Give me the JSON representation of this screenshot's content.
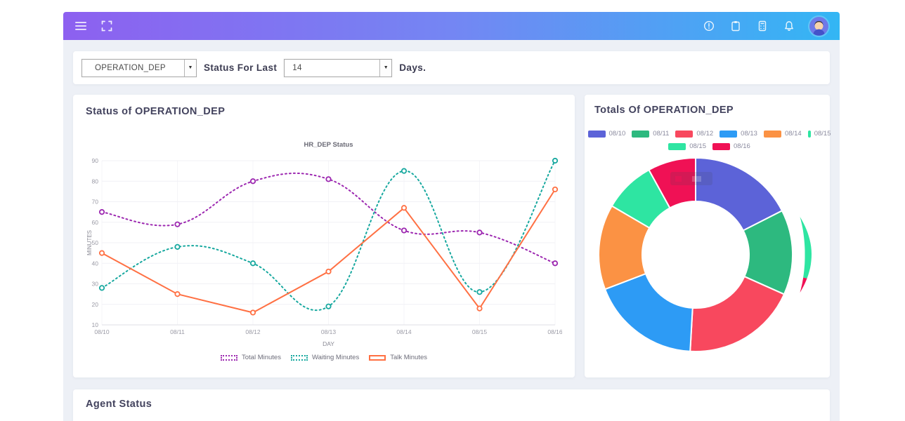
{
  "navbar": {
    "left_icons": [
      "menu-icon",
      "fullscreen-icon"
    ],
    "right_icons": [
      "help-icon",
      "clipboard-icon",
      "calculator-icon",
      "bell-icon"
    ],
    "avatar": "user-avatar"
  },
  "filter": {
    "department": {
      "value": "OPERATION_DEP"
    },
    "status_for_last_label": "Status For Last",
    "days": {
      "value": "14"
    },
    "days_label": "Days."
  },
  "cards": {
    "line": {
      "title": "Status of OPERATION_DEP"
    },
    "donut": {
      "title": "Totals Of OPERATION_DEP"
    },
    "agent": {
      "title": "Agent Status"
    }
  },
  "colors": {
    "navbar_gradient_start": "#8d60f0",
    "navbar_gradient_end": "#33b6f4",
    "content_bg": "#edf0f6",
    "card_bg": "#ffffff"
  },
  "chart_data": [
    {
      "type": "line",
      "title": "HR_DEP Status",
      "xlabel": "DAY",
      "ylabel": "MINUTES",
      "x": [
        "08/10",
        "08/11",
        "08/12",
        "08/13",
        "08/14",
        "08/15",
        "08/16"
      ],
      "ylim": [
        10,
        90
      ],
      "yticks": [
        10,
        20,
        30,
        40,
        50,
        60,
        70,
        80,
        90
      ],
      "grid": true,
      "legend_position": "bottom",
      "series": [
        {
          "name": "Total Minutes",
          "color": "#9c27b0",
          "style": "dotted",
          "smooth": true,
          "values": [
            65,
            59,
            80,
            81,
            56,
            55,
            40
          ]
        },
        {
          "name": "Waiting Minutes",
          "color": "#17a89f",
          "style": "dotted",
          "smooth": true,
          "values": [
            28,
            48,
            40,
            19,
            85,
            26,
            90
          ]
        },
        {
          "name": "Talk Minutes",
          "color": "#ff7043",
          "style": "solid",
          "smooth": false,
          "values": [
            45,
            25,
            16,
            36,
            67,
            18,
            76
          ]
        }
      ]
    },
    {
      "type": "pie",
      "variant": "doughnut",
      "labels": [
        "08/10",
        "08/11",
        "08/12",
        "08/13",
        "08/14",
        "08/15",
        "08/16"
      ],
      "values": [
        17.5,
        14.2,
        19.2,
        18.3,
        14.2,
        8.6,
        8.0
      ],
      "colors": [
        "#5c63d8",
        "#2db97f",
        "#f8485e",
        "#2d9bf5",
        "#fb9244",
        "#2ee5a2",
        "#f01155"
      ],
      "legend_rows": [
        [
          {
            "label": "08/10",
            "color": "#5c63d8"
          },
          {
            "label": "08/11",
            "color": "#2db97f"
          },
          {
            "label": "08/12",
            "color": "#f8485e"
          },
          {
            "label": "08/13",
            "color": "#2d9bf5"
          },
          {
            "label": "08/14",
            "color": "#fb9244"
          },
          {
            "label": "08/15",
            "color": "#2ee5a2",
            "thin": true
          }
        ],
        [
          {
            "label": "08/15",
            "color": "#2ee5a2"
          },
          {
            "label": "08/16",
            "color": "#f01155"
          }
        ]
      ],
      "detached_arc": {
        "full": [
          70,
          110
        ],
        "segments": [
          {
            "color": "#2ee5a2",
            "from_deg": 70,
            "to_deg": 102
          },
          {
            "color": "#f01155",
            "from_deg": 102,
            "to_deg": 110
          }
        ]
      }
    }
  ]
}
